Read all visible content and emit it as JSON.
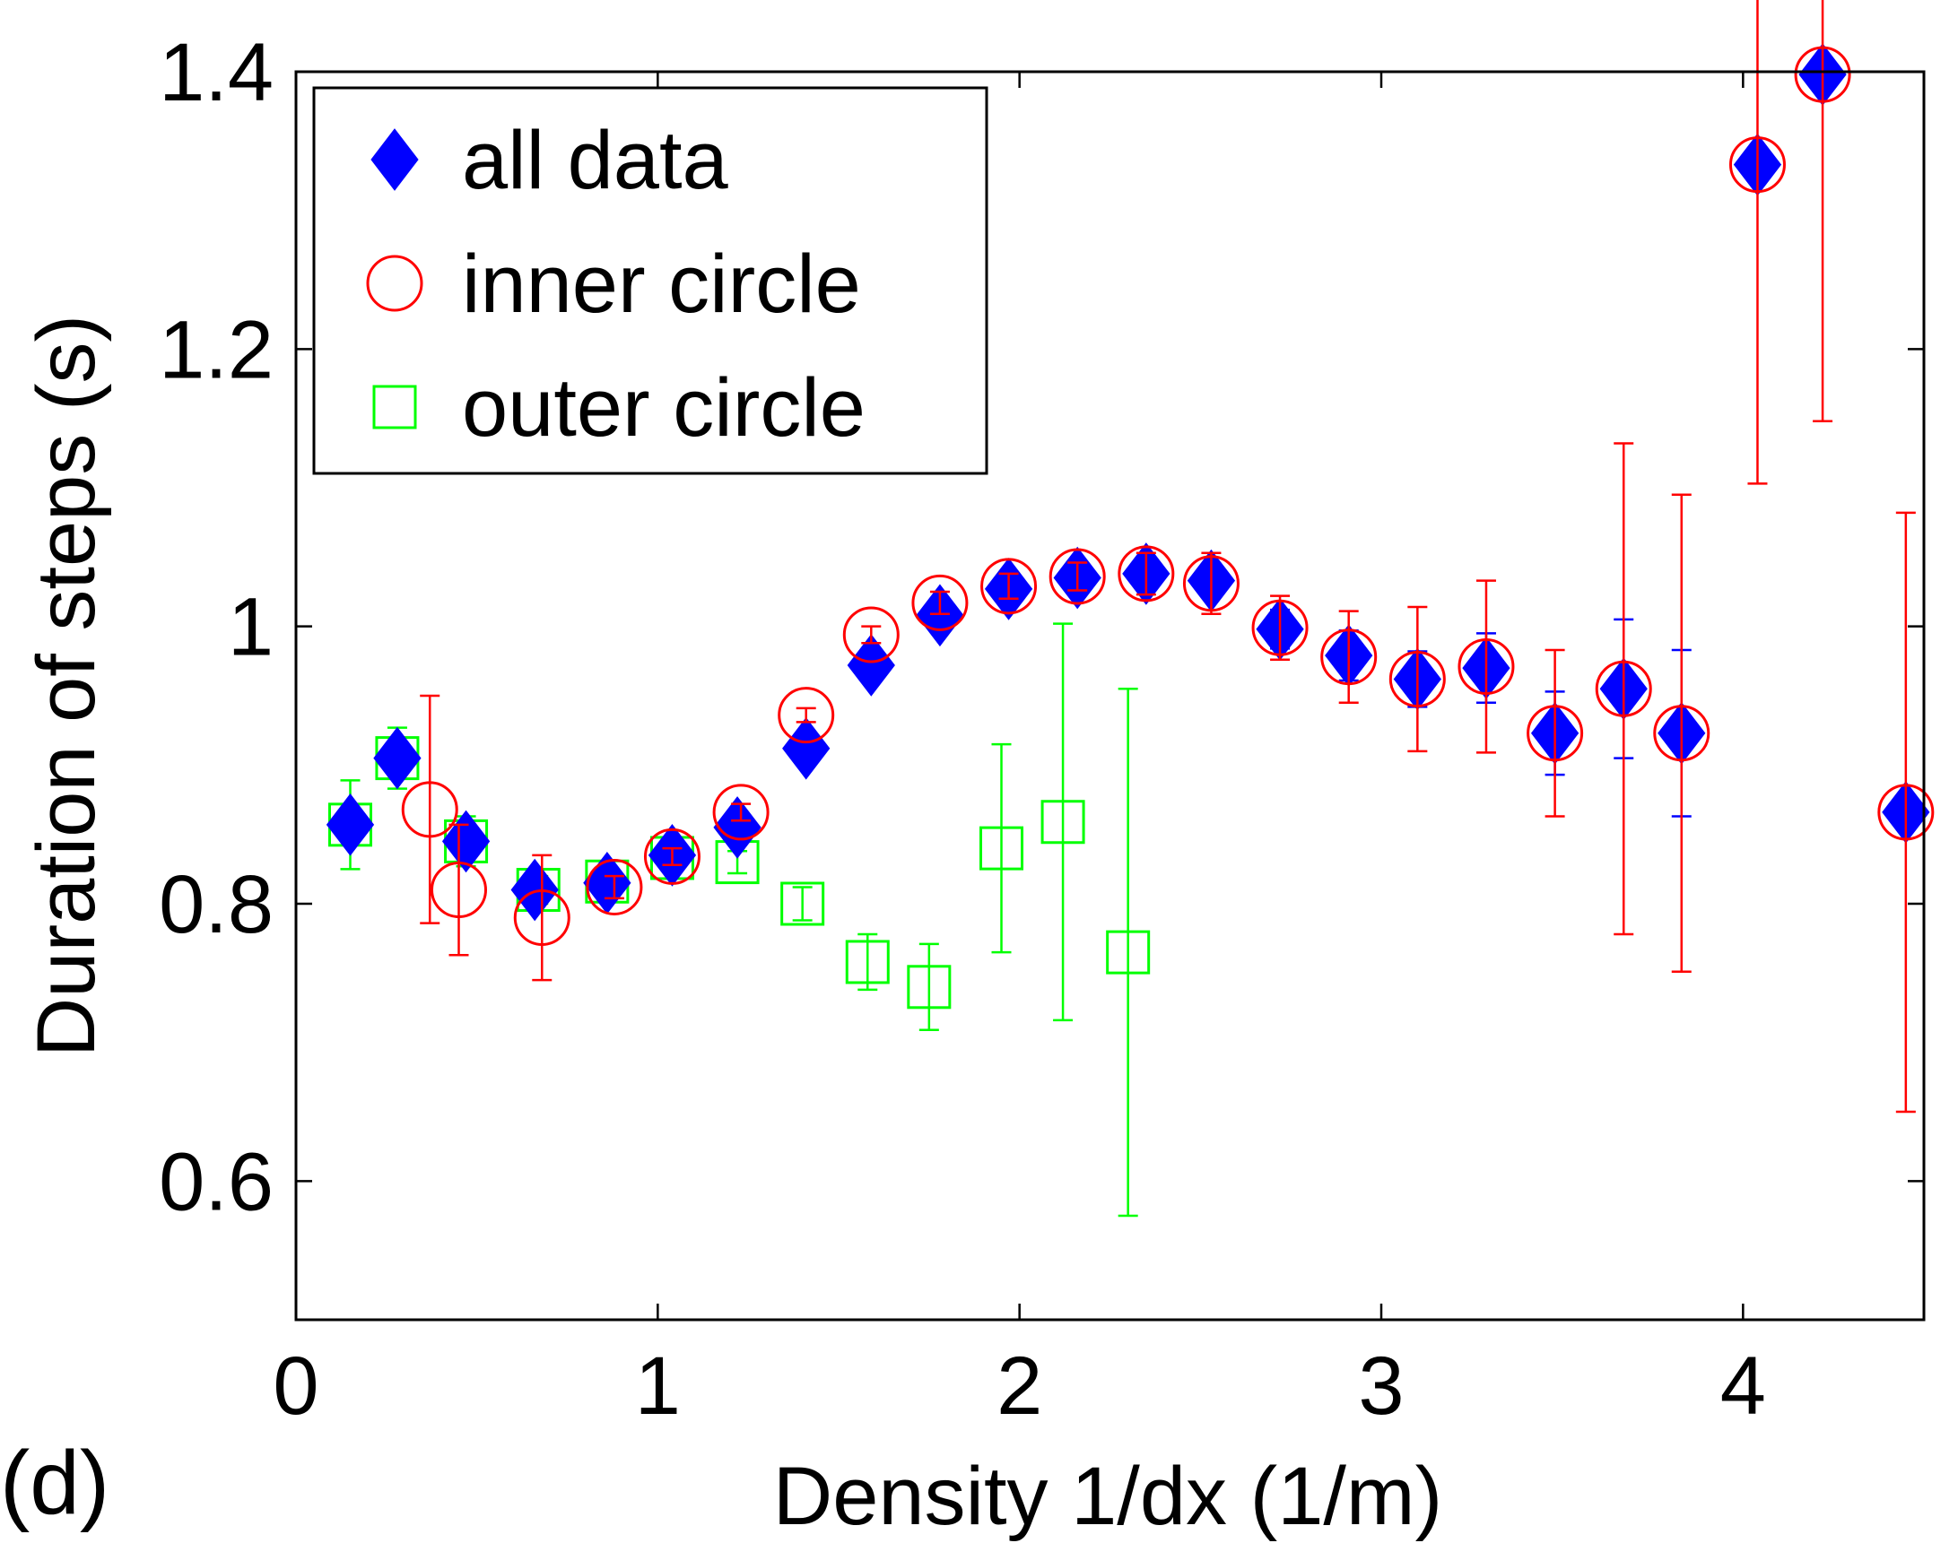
{
  "panel_label": "(d)",
  "chart_data": {
    "type": "scatter",
    "xlabel": "Density 1/dx (1/m)",
    "ylabel": "Duration of steps (s)",
    "xlim": [
      0,
      4.5
    ],
    "ylim": [
      0.5,
      1.4
    ],
    "xticks": [
      0,
      1,
      2,
      3,
      4
    ],
    "xtick_labels": [
      "0",
      "1",
      "2",
      "3",
      "4"
    ],
    "yticks": [
      0.6,
      0.8,
      1.0,
      1.2,
      1.4
    ],
    "ytick_labels": [
      "0.6",
      "0.8",
      "1",
      "1.2",
      "1.4"
    ],
    "grid": false,
    "legend_position": "top-left",
    "series": [
      {
        "name": "all data",
        "marker": "filled-diamond",
        "color": "#0000ff",
        "points": [
          {
            "x": 0.15,
            "y": 0.857,
            "err": 0.012
          },
          {
            "x": 0.28,
            "y": 0.905,
            "err": 0.012
          },
          {
            "x": 0.47,
            "y": 0.845,
            "err": 0.01
          },
          {
            "x": 0.66,
            "y": 0.81,
            "err": 0.007
          },
          {
            "x": 0.86,
            "y": 0.815,
            "err": 0.006
          },
          {
            "x": 1.04,
            "y": 0.835,
            "err": 0.006
          },
          {
            "x": 1.22,
            "y": 0.855,
            "err": 0.006
          },
          {
            "x": 1.41,
            "y": 0.912,
            "err": 0.005
          },
          {
            "x": 1.59,
            "y": 0.972,
            "err": 0.005
          },
          {
            "x": 1.78,
            "y": 1.008,
            "err": 0.006
          },
          {
            "x": 1.97,
            "y": 1.027,
            "err": 0.007
          },
          {
            "x": 2.16,
            "y": 1.035,
            "err": 0.009
          },
          {
            "x": 2.35,
            "y": 1.038,
            "err": 0.01
          },
          {
            "x": 2.53,
            "y": 1.033,
            "err": 0.012
          },
          {
            "x": 2.72,
            "y": 0.998,
            "err": 0.014
          },
          {
            "x": 2.91,
            "y": 0.979,
            "err": 0.018
          },
          {
            "x": 3.1,
            "y": 0.962,
            "err": 0.02
          },
          {
            "x": 3.29,
            "y": 0.97,
            "err": 0.025
          },
          {
            "x": 3.48,
            "y": 0.923,
            "err": 0.03
          },
          {
            "x": 3.67,
            "y": 0.955,
            "err": 0.05
          },
          {
            "x": 3.83,
            "y": 0.923,
            "err": 0.06
          },
          {
            "x": 4.04,
            "y": 1.333,
            "err": 0.0
          },
          {
            "x": 4.22,
            "y": 1.398,
            "err": 0.0
          },
          {
            "x": 4.45,
            "y": 0.866,
            "err": 0.0
          }
        ]
      },
      {
        "name": "inner circle",
        "marker": "open-circle",
        "color": "#ff0000",
        "points": [
          {
            "x": 0.37,
            "y": 0.868,
            "err": 0.082
          },
          {
            "x": 0.45,
            "y": 0.81,
            "err": 0.047
          },
          {
            "x": 0.68,
            "y": 0.79,
            "err": 0.045
          },
          {
            "x": 0.88,
            "y": 0.812,
            "err": 0.008
          },
          {
            "x": 1.04,
            "y": 0.834,
            "err": 0.006
          },
          {
            "x": 1.23,
            "y": 0.866,
            "err": 0.006
          },
          {
            "x": 1.41,
            "y": 0.936,
            "err": 0.005
          },
          {
            "x": 1.59,
            "y": 0.994,
            "err": 0.006
          },
          {
            "x": 1.78,
            "y": 1.017,
            "err": 0.008
          },
          {
            "x": 1.97,
            "y": 1.029,
            "err": 0.009
          },
          {
            "x": 2.16,
            "y": 1.036,
            "err": 0.01
          },
          {
            "x": 2.35,
            "y": 1.038,
            "err": 0.015
          },
          {
            "x": 2.53,
            "y": 1.031,
            "err": 0.022
          },
          {
            "x": 2.72,
            "y": 0.999,
            "err": 0.023
          },
          {
            "x": 2.91,
            "y": 0.978,
            "err": 0.033
          },
          {
            "x": 3.1,
            "y": 0.962,
            "err": 0.052
          },
          {
            "x": 3.29,
            "y": 0.971,
            "err": 0.062
          },
          {
            "x": 3.48,
            "y": 0.923,
            "err": 0.06
          },
          {
            "x": 3.67,
            "y": 0.955,
            "err": 0.177
          },
          {
            "x": 3.83,
            "y": 0.923,
            "err": 0.172
          },
          {
            "x": 4.04,
            "y": 1.333,
            "err": 0.23
          },
          {
            "x": 4.22,
            "y": 1.398,
            "err": 0.25
          },
          {
            "x": 4.45,
            "y": 0.866,
            "err": 0.216
          }
        ]
      },
      {
        "name": "outer circle",
        "marker": "open-square",
        "color": "#00ff00",
        "points": [
          {
            "x": 0.15,
            "y": 0.857,
            "err": 0.032
          },
          {
            "x": 0.28,
            "y": 0.905,
            "err": 0.022
          },
          {
            "x": 0.47,
            "y": 0.845,
            "err": 0.018
          },
          {
            "x": 0.67,
            "y": 0.81,
            "err": 0.01
          },
          {
            "x": 0.86,
            "y": 0.816,
            "err": 0.009
          },
          {
            "x": 1.04,
            "y": 0.833,
            "err": 0.006
          },
          {
            "x": 1.22,
            "y": 0.83,
            "err": 0.008
          },
          {
            "x": 1.4,
            "y": 0.8,
            "err": 0.012
          },
          {
            "x": 1.58,
            "y": 0.758,
            "err": 0.02
          },
          {
            "x": 1.75,
            "y": 0.74,
            "err": 0.031
          },
          {
            "x": 1.95,
            "y": 0.84,
            "err": 0.075
          },
          {
            "x": 2.12,
            "y": 0.859,
            "err": 0.143
          },
          {
            "x": 2.3,
            "y": 0.765,
            "err": 0.19
          }
        ]
      }
    ]
  }
}
